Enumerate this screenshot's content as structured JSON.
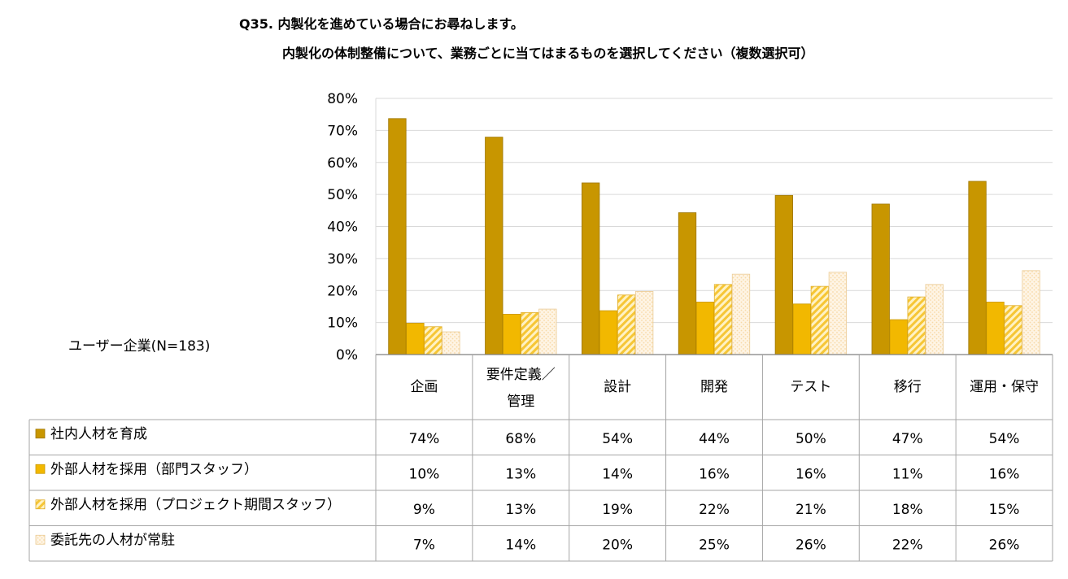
{
  "header": {
    "title_line1": "Q35. 内製化を進めている場合にお尋ねします。",
    "title_line2": "内製化の体制整備について、業務ごとに当てはまるものを選択してください（複数選択可）"
  },
  "sample_label": "ユーザー企業(N=183)",
  "colors": {
    "series1": "#C89600",
    "series2": "#F2B800",
    "series3_stripe": "#F6C636",
    "series3_bg": "#FFF2C4",
    "series4_bg": "#FEF4E4",
    "series4_dot": "#F7D9A6",
    "grid": "#D9D9D9",
    "table_border": "#A6A6A6"
  },
  "chart_data": {
    "type": "bar",
    "title": "Q35. 内製化を進めている場合にお尋ねします。 内製化の体制整備について、業務ごとに当てはまるものを選択してください（複数選択可）",
    "categories": [
      {
        "line1": "企画",
        "line2": ""
      },
      {
        "line1": "要件定義／",
        "line2": "管理"
      },
      {
        "line1": "設計",
        "line2": ""
      },
      {
        "line1": "開発",
        "line2": ""
      },
      {
        "line1": "テスト",
        "line2": ""
      },
      {
        "line1": "移行",
        "line2": ""
      },
      {
        "line1": "運用・保守",
        "line2": ""
      }
    ],
    "series": [
      {
        "name": "社内人材を育成",
        "values": [
          73.7,
          67.9,
          53.6,
          44.3,
          49.7,
          47.0,
          54.1
        ],
        "labels": [
          "74%",
          "68%",
          "54%",
          "44%",
          "50%",
          "47%",
          "54%"
        ]
      },
      {
        "name": "外部人材を採用（部門スタッフ）",
        "values": [
          9.8,
          12.6,
          13.7,
          16.4,
          15.8,
          10.9,
          16.4
        ],
        "labels": [
          "10%",
          "13%",
          "14%",
          "16%",
          "16%",
          "11%",
          "16%"
        ]
      },
      {
        "name": "外部人材を採用（プロジェクト期間スタッフ）",
        "values": [
          8.7,
          13.1,
          18.6,
          21.9,
          21.3,
          18.0,
          15.3
        ],
        "labels": [
          "9%",
          "13%",
          "19%",
          "22%",
          "21%",
          "18%",
          "15%"
        ]
      },
      {
        "name": "委託先の人材が常駐",
        "values": [
          7.1,
          14.2,
          19.7,
          25.1,
          25.7,
          21.9,
          26.2
        ],
        "labels": [
          "7%",
          "14%",
          "20%",
          "25%",
          "26%",
          "22%",
          "26%"
        ]
      }
    ],
    "ylim": [
      0,
      80
    ],
    "yticks": [
      "0%",
      "10%",
      "20%",
      "30%",
      "40%",
      "50%",
      "60%",
      "70%",
      "80%"
    ],
    "grid": true,
    "legend": "table-below"
  }
}
